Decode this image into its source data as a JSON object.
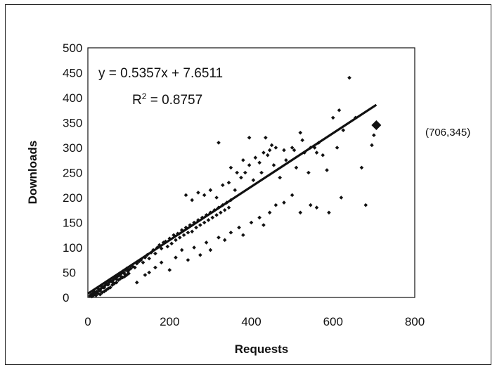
{
  "chart_data": {
    "type": "scatter",
    "xlabel": "Requests",
    "ylabel": "Downloads",
    "xlim": [
      0,
      800
    ],
    "ylim": [
      0,
      500
    ],
    "x_ticks": [
      0,
      200,
      400,
      600,
      800
    ],
    "y_ticks": [
      0,
      50,
      100,
      150,
      200,
      250,
      300,
      350,
      400,
      450,
      500
    ],
    "x_tick_labels": [
      "0",
      "200",
      "400",
      "600",
      "800"
    ],
    "y_tick_labels": [
      "0",
      "50",
      "100",
      "150",
      "200",
      "250",
      "300",
      "350",
      "400",
      "450",
      "500"
    ],
    "grid": false,
    "trendline": {
      "slope": 0.5357,
      "intercept": 7.6511,
      "x_range": [
        0,
        706
      ],
      "equation": "y = 0.5357x + 7.6511",
      "r2_label": "R",
      "r2_value": " = 0.8757"
    },
    "highlight": {
      "x": 706,
      "y": 345,
      "label": "(706,345)"
    },
    "series": [
      {
        "points": [
          [
            5,
            3
          ],
          [
            8,
            6
          ],
          [
            10,
            2
          ],
          [
            12,
            8
          ],
          [
            15,
            5
          ],
          [
            18,
            10
          ],
          [
            20,
            4
          ],
          [
            22,
            12
          ],
          [
            25,
            8
          ],
          [
            28,
            14
          ],
          [
            30,
            6
          ],
          [
            32,
            18
          ],
          [
            35,
            10
          ],
          [
            38,
            20
          ],
          [
            40,
            12
          ],
          [
            42,
            24
          ],
          [
            45,
            15
          ],
          [
            48,
            26
          ],
          [
            50,
            18
          ],
          [
            52,
            30
          ],
          [
            55,
            20
          ],
          [
            58,
            32
          ],
          [
            60,
            25
          ],
          [
            62,
            35
          ],
          [
            65,
            28
          ],
          [
            68,
            38
          ],
          [
            70,
            30
          ],
          [
            72,
            42
          ],
          [
            75,
            35
          ],
          [
            78,
            45
          ],
          [
            80,
            38
          ],
          [
            82,
            48
          ],
          [
            85,
            40
          ],
          [
            88,
            50
          ],
          [
            90,
            42
          ],
          [
            92,
            55
          ],
          [
            95,
            45
          ],
          [
            98,
            52
          ],
          [
            100,
            48
          ],
          [
            15,
            12
          ],
          [
            25,
            18
          ],
          [
            35,
            22
          ],
          [
            45,
            28
          ],
          [
            55,
            34
          ],
          [
            65,
            40
          ],
          [
            75,
            44
          ],
          [
            85,
            52
          ],
          [
            95,
            58
          ],
          [
            20,
            9
          ],
          [
            30,
            14
          ],
          [
            40,
            20
          ],
          [
            50,
            26
          ],
          [
            60,
            31
          ],
          [
            70,
            37
          ],
          [
            80,
            43
          ],
          [
            90,
            47
          ],
          [
            100,
            55
          ],
          [
            105,
            58
          ],
          [
            110,
            62
          ],
          [
            115,
            60
          ],
          [
            120,
            68
          ],
          [
            125,
            72
          ],
          [
            130,
            75
          ],
          [
            135,
            70
          ],
          [
            140,
            80
          ],
          [
            145,
            85
          ],
          [
            150,
            78
          ],
          [
            155,
            90
          ],
          [
            160,
            95
          ],
          [
            165,
            88
          ],
          [
            170,
            100
          ],
          [
            175,
            105
          ],
          [
            180,
            98
          ],
          [
            185,
            110
          ],
          [
            190,
            112
          ],
          [
            195,
            102
          ],
          [
            200,
            118
          ],
          [
            205,
            108
          ],
          [
            210,
            125
          ],
          [
            215,
            115
          ],
          [
            220,
            128
          ],
          [
            225,
            120
          ],
          [
            230,
            135
          ],
          [
            235,
            125
          ],
          [
            240,
            140
          ],
          [
            245,
            130
          ],
          [
            250,
            145
          ],
          [
            255,
            132
          ],
          [
            260,
            150
          ],
          [
            265,
            140
          ],
          [
            270,
            155
          ],
          [
            275,
            145
          ],
          [
            280,
            160
          ],
          [
            285,
            150
          ],
          [
            290,
            165
          ],
          [
            295,
            155
          ],
          [
            300,
            170
          ],
          [
            305,
            160
          ],
          [
            310,
            175
          ],
          [
            315,
            165
          ],
          [
            320,
            180
          ],
          [
            325,
            170
          ],
          [
            330,
            185
          ],
          [
            335,
            175
          ],
          [
            340,
            190
          ],
          [
            345,
            180
          ],
          [
            350,
            195
          ],
          [
            120,
            30
          ],
          [
            140,
            45
          ],
          [
            150,
            50
          ],
          [
            165,
            60
          ],
          [
            180,
            70
          ],
          [
            200,
            55
          ],
          [
            215,
            80
          ],
          [
            230,
            95
          ],
          [
            245,
            75
          ],
          [
            260,
            100
          ],
          [
            275,
            85
          ],
          [
            290,
            110
          ],
          [
            300,
            95
          ],
          [
            320,
            120
          ],
          [
            335,
            115
          ],
          [
            350,
            130
          ],
          [
            370,
            140
          ],
          [
            380,
            125
          ],
          [
            400,
            150
          ],
          [
            420,
            160
          ],
          [
            430,
            145
          ],
          [
            445,
            170
          ],
          [
            460,
            185
          ],
          [
            480,
            190
          ],
          [
            500,
            205
          ],
          [
            520,
            170
          ],
          [
            545,
            185
          ],
          [
            560,
            180
          ],
          [
            590,
            170
          ],
          [
            620,
            200
          ],
          [
            240,
            205
          ],
          [
            255,
            195
          ],
          [
            270,
            210
          ],
          [
            285,
            205
          ],
          [
            300,
            215
          ],
          [
            315,
            200
          ],
          [
            330,
            225
          ],
          [
            345,
            230
          ],
          [
            360,
            215
          ],
          [
            375,
            240
          ],
          [
            385,
            250
          ],
          [
            395,
            265
          ],
          [
            405,
            235
          ],
          [
            410,
            280
          ],
          [
            420,
            270
          ],
          [
            425,
            250
          ],
          [
            430,
            290
          ],
          [
            440,
            285
          ],
          [
            445,
            295
          ],
          [
            455,
            265
          ],
          [
            460,
            300
          ],
          [
            470,
            240
          ],
          [
            480,
            295
          ],
          [
            485,
            275
          ],
          [
            500,
            300
          ],
          [
            510,
            260
          ],
          [
            520,
            330
          ],
          [
            530,
            290
          ],
          [
            540,
            250
          ],
          [
            545,
            300
          ],
          [
            555,
            300
          ],
          [
            565,
            310
          ],
          [
            575,
            285
          ],
          [
            585,
            255
          ],
          [
            600,
            360
          ],
          [
            610,
            300
          ],
          [
            615,
            375
          ],
          [
            625,
            335
          ],
          [
            640,
            440
          ],
          [
            655,
            360
          ],
          [
            670,
            260
          ],
          [
            680,
            185
          ],
          [
            695,
            305
          ],
          [
            700,
            325
          ],
          [
            320,
            310
          ],
          [
            395,
            320
          ],
          [
            350,
            260
          ],
          [
            365,
            250
          ],
          [
            380,
            275
          ],
          [
            435,
            320
          ],
          [
            450,
            305
          ],
          [
            505,
            295
          ],
          [
            525,
            315
          ],
          [
            560,
            290
          ]
        ]
      }
    ]
  }
}
